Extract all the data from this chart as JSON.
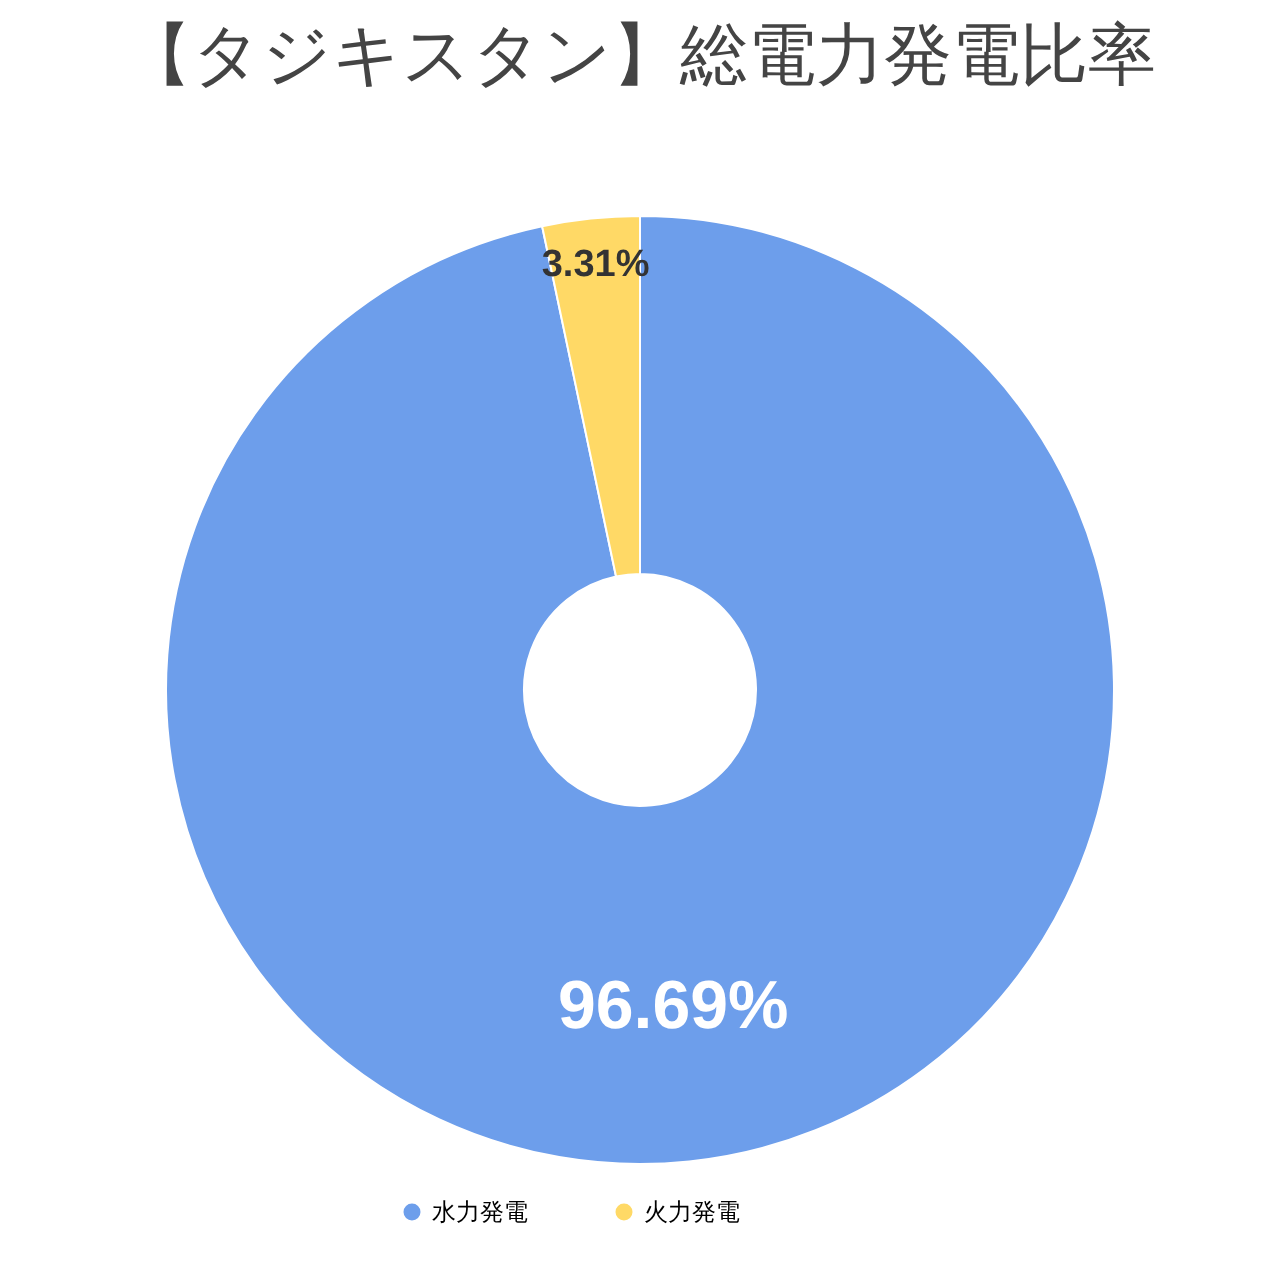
{
  "chart_data": {
    "type": "donut",
    "title": "【タジキスタン】総電力発電比率",
    "categories": [
      "水力発電",
      "火力発電"
    ],
    "values": [
      96.69,
      3.31
    ],
    "colors": [
      "#6d9eeb",
      "#ffd966"
    ],
    "value_labels": [
      "96.69%",
      "3.31%"
    ],
    "legend": "bottom"
  }
}
